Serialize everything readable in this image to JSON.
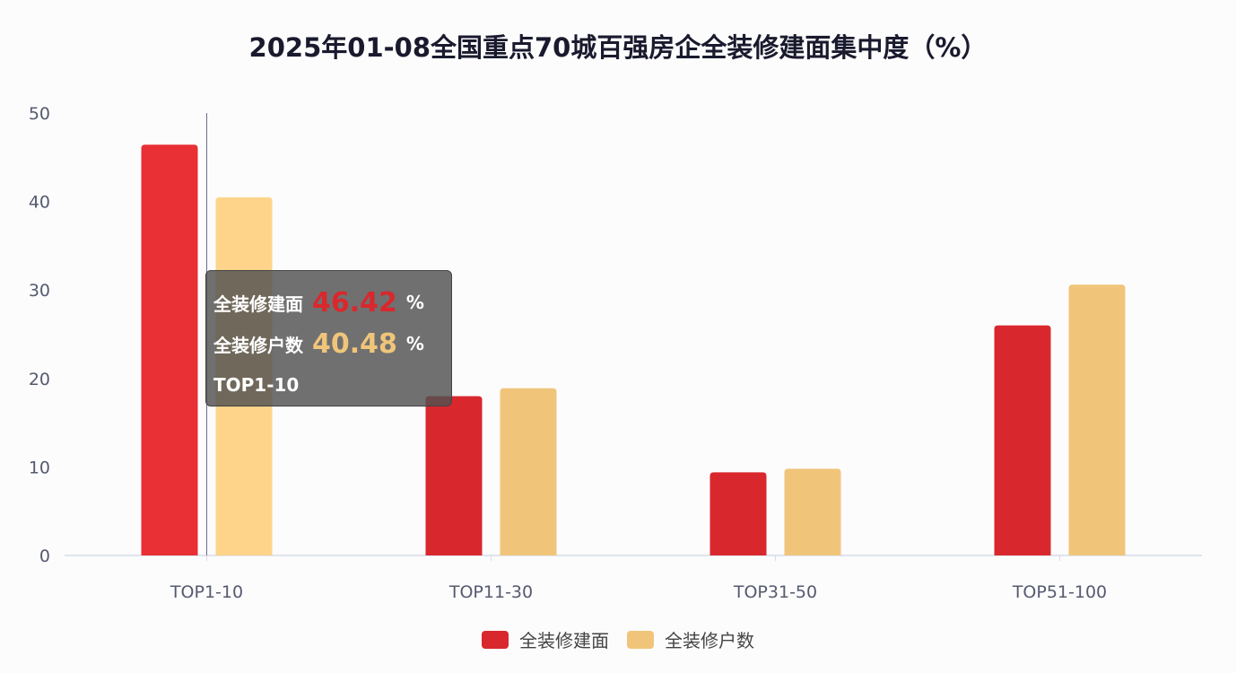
{
  "chart_data": {
    "type": "bar",
    "title": "2025年01-08全国重点70城百强房企全装修建面集中度（%）",
    "categories": [
      "TOP1-10",
      "TOP11-30",
      "TOP31-50",
      "TOP51-100"
    ],
    "series": [
      {
        "name": "全装修建面",
        "values": [
          46.42,
          18.0,
          9.4,
          26.0
        ],
        "color": "#d9282d"
      },
      {
        "name": "全装修户数",
        "values": [
          40.48,
          18.9,
          9.8,
          30.6
        ],
        "color": "#f0c57a"
      }
    ],
    "ylim": [
      0,
      50
    ],
    "yticks": [
      0,
      10,
      20,
      30,
      40,
      50
    ],
    "grid": false,
    "legend": "bottom",
    "tooltip": {
      "category": "TOP1-10",
      "rows": [
        {
          "label": "全装修建面",
          "value": "46.42",
          "unit": "%"
        },
        {
          "label": "全装修户数",
          "value": "40.48",
          "unit": "%"
        }
      ]
    }
  }
}
